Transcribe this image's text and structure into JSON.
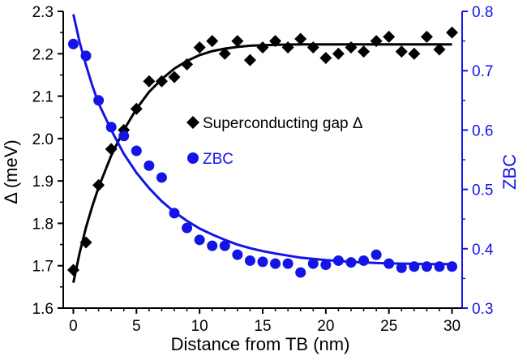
{
  "chart_data": {
    "type": "scatter",
    "xlabel": "Distance from TB (nm)",
    "ylabel_left": "Δ (meV)",
    "ylabel_right": "ZBC",
    "xlim": [
      -0.8,
      30.8
    ],
    "ylim_left": [
      1.6,
      2.3
    ],
    "ylim_right": [
      0.3,
      0.8
    ],
    "x_ticks": [
      0,
      5,
      10,
      15,
      20,
      25,
      30
    ],
    "y_left_ticks": [
      1.6,
      1.7,
      1.8,
      1.9,
      2.0,
      2.1,
      2.2,
      2.3
    ],
    "y_right_ticks": [
      0.3,
      0.4,
      0.5,
      0.6,
      0.7,
      0.8
    ],
    "legend_placement": "center",
    "series": [
      {
        "name": "Superconducting gap Δ",
        "axis": "left",
        "marker": "diamond",
        "color": "#000000",
        "x": [
          0,
          1,
          2,
          3,
          4,
          5,
          6,
          7,
          8,
          9,
          10,
          11,
          12,
          13,
          14,
          15,
          16,
          17,
          18,
          19,
          20,
          21,
          22,
          23,
          24,
          25,
          26,
          27,
          28,
          29,
          30
        ],
        "values": [
          1.69,
          1.755,
          1.89,
          1.975,
          2.02,
          2.07,
          2.135,
          2.135,
          2.145,
          2.175,
          2.215,
          2.23,
          2.2,
          2.23,
          2.185,
          2.215,
          2.23,
          2.215,
          2.235,
          2.215,
          2.19,
          2.2,
          2.215,
          2.205,
          2.23,
          2.24,
          2.205,
          2.2,
          2.24,
          2.21,
          2.25
        ]
      },
      {
        "name": "ZBC",
        "axis": "right",
        "marker": "circle",
        "color": "#1414e6",
        "x": [
          0,
          1,
          2,
          3,
          4,
          5,
          6,
          7,
          8,
          9,
          10,
          11,
          12,
          13,
          14,
          15,
          16,
          17,
          18,
          19,
          20,
          21,
          22,
          23,
          24,
          25,
          26,
          27,
          28,
          29,
          30
        ],
        "values": [
          0.745,
          0.725,
          0.65,
          0.605,
          0.59,
          0.565,
          0.54,
          0.52,
          0.46,
          0.435,
          0.415,
          0.405,
          0.405,
          0.39,
          0.38,
          0.378,
          0.375,
          0.375,
          0.36,
          0.375,
          0.373,
          0.38,
          0.377,
          0.38,
          0.39,
          0.375,
          0.368,
          0.37,
          0.37,
          0.37,
          0.37
        ]
      }
    ],
    "fits": [
      {
        "series": "Superconducting gap Δ",
        "axis": "left",
        "color": "#000000",
        "x": [
          0,
          0.5,
          1,
          1.5,
          2,
          3,
          4,
          5,
          6,
          7,
          8,
          9,
          10,
          11,
          12,
          13,
          14,
          16,
          18,
          20,
          22,
          24,
          26,
          28,
          30
        ],
        "values": [
          1.66,
          1.73,
          1.79,
          1.84,
          1.885,
          1.96,
          2.02,
          2.07,
          2.11,
          2.14,
          2.165,
          2.183,
          2.197,
          2.206,
          2.212,
          2.216,
          2.219,
          2.221,
          2.222,
          2.222,
          2.222,
          2.222,
          2.222,
          2.222,
          2.222
        ]
      },
      {
        "series": "ZBC",
        "axis": "right",
        "color": "#1414e6",
        "x": [
          0,
          0.5,
          1,
          1.5,
          2,
          3,
          4,
          5,
          6,
          7,
          8,
          9,
          10,
          11,
          12,
          13,
          14,
          15,
          16,
          18,
          20,
          22,
          24,
          26,
          28,
          30
        ],
        "values": [
          0.795,
          0.748,
          0.71,
          0.675,
          0.645,
          0.6,
          0.56,
          0.528,
          0.502,
          0.48,
          0.462,
          0.447,
          0.434,
          0.424,
          0.415,
          0.407,
          0.401,
          0.396,
          0.392,
          0.385,
          0.381,
          0.378,
          0.376,
          0.375,
          0.374,
          0.374
        ]
      }
    ]
  },
  "legend": {
    "gap_label": "Superconducting gap Δ",
    "zbc_label": "ZBC"
  },
  "colors": {
    "gap": "#000000",
    "zbc": "#1414e6"
  }
}
